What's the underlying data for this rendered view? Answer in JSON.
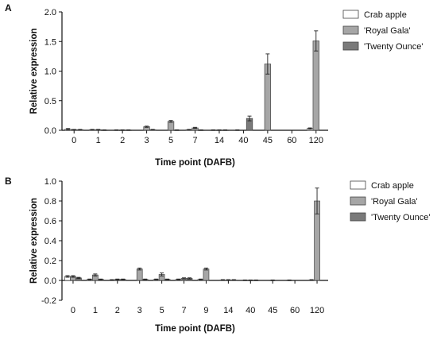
{
  "figure": {
    "panels": [
      "A",
      "B"
    ]
  },
  "chart_data": [
    {
      "panel": "A",
      "type": "bar",
      "xlabel": "Time point (DAFB)",
      "ylabel": "Relative expression",
      "ylim": [
        0,
        2.0
      ],
      "yticks": [
        "0.0",
        "0.5",
        "1.0",
        "1.5",
        "2.0"
      ],
      "ytick_values": [
        0,
        0.5,
        1.0,
        1.5,
        2.0
      ],
      "categories": [
        "0",
        "1",
        "2",
        "3",
        "5",
        "7",
        "14",
        "40",
        "45",
        "60",
        "120"
      ],
      "legend_position": "top-right",
      "series": [
        {
          "name": "Crab apple",
          "color": "#ffffff",
          "values": [
            0.02,
            0.01,
            0.005,
            null,
            null,
            0.01,
            0.005,
            0.005,
            null,
            null,
            0.03
          ],
          "errors": [
            0.01,
            0.005,
            0.003,
            null,
            null,
            0.005,
            0.003,
            0.003,
            null,
            null,
            0.01
          ]
        },
        {
          "name": "'Royal Gala'",
          "color": "#a6a6a6",
          "values": [
            0.01,
            0.01,
            0.005,
            0.06,
            0.15,
            0.04,
            0.005,
            null,
            1.12,
            null,
            1.51
          ],
          "errors": [
            0.005,
            0.005,
            0.003,
            0.01,
            0.015,
            0.01,
            0.003,
            null,
            0.17,
            null,
            0.17
          ]
        },
        {
          "name": "'Twenty Ounce'",
          "color": "#7a7a7a",
          "values": [
            0.01,
            0.005,
            0.005,
            0.01,
            0.005,
            0.005,
            0.005,
            0.2,
            null,
            null,
            null
          ],
          "errors": [
            0.005,
            0.003,
            0.003,
            0.005,
            0.003,
            0.003,
            0.003,
            0.04,
            null,
            null,
            null
          ]
        }
      ]
    },
    {
      "panel": "B",
      "type": "bar",
      "xlabel": "Time point (DAFB)",
      "ylabel": "Relative expression",
      "ylim": [
        -0.2,
        1.0
      ],
      "yticks": [
        "-0.2",
        "0.0",
        "0.2",
        "0.4",
        "0.6",
        "0.8",
        "1.0"
      ],
      "ytick_values": [
        -0.2,
        0,
        0.2,
        0.4,
        0.6,
        0.8,
        1.0
      ],
      "categories": [
        "0",
        "1",
        "2",
        "3",
        "5",
        "7",
        "9",
        "14",
        "40",
        "45",
        "60",
        "120"
      ],
      "legend_position": "top-right",
      "series": [
        {
          "name": "Crab apple",
          "color": "#ffffff",
          "values": [
            0.04,
            0.01,
            0.005,
            null,
            0.01,
            0.01,
            0.01,
            0.005,
            0.003,
            null,
            0.003,
            0.005
          ],
          "errors": [
            0.008,
            0.004,
            0.003,
            null,
            0.004,
            0.004,
            0.004,
            0.003,
            0.002,
            null,
            0.002,
            0.003
          ]
        },
        {
          "name": "'Royal Gala'",
          "color": "#a6a6a6",
          "values": [
            0.04,
            0.055,
            0.01,
            0.115,
            0.06,
            0.02,
            0.115,
            0.005,
            0.003,
            0.003,
            null,
            0.8
          ],
          "errors": [
            0.008,
            0.01,
            0.004,
            0.01,
            0.015,
            0.006,
            0.01,
            0.003,
            0.002,
            0.002,
            null,
            0.13
          ]
        },
        {
          "name": "'Twenty Ounce'",
          "color": "#7a7a7a",
          "values": [
            0.025,
            0.01,
            0.01,
            0.01,
            0.01,
            0.02,
            null,
            0.005,
            0.003,
            null,
            null,
            null
          ],
          "errors": [
            0.006,
            0.004,
            0.004,
            0.004,
            0.004,
            0.006,
            null,
            0.003,
            0.002,
            null,
            null,
            null
          ]
        }
      ]
    }
  ]
}
